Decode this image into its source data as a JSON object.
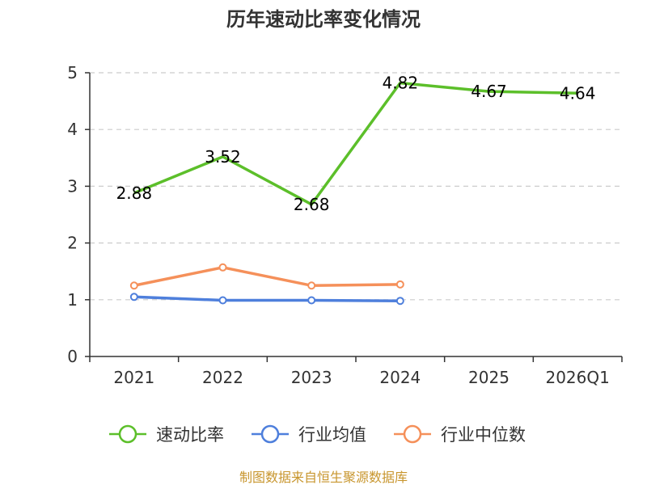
{
  "chart_data": {
    "type": "line",
    "title": "历年速动比率变化情况",
    "categories": [
      "2021",
      "2022",
      "2023",
      "2024",
      "2025",
      "2026Q1"
    ],
    "ylim": [
      0,
      5
    ],
    "yticks": [
      "0",
      "1",
      "2",
      "3",
      "4",
      "5"
    ],
    "grid": true,
    "legend_position": "bottom",
    "series": [
      {
        "name": "速动比率",
        "color": "#5cbf2a",
        "values": [
          2.88,
          3.52,
          2.68,
          4.82,
          4.67,
          4.64
        ],
        "labels": [
          "2.88",
          "3.52",
          "2.68",
          "4.82",
          "4.67",
          "4.64"
        ]
      },
      {
        "name": "行业均值",
        "color": "#4e7fdc",
        "values": [
          1.05,
          0.99,
          0.99,
          0.98,
          null,
          null
        ]
      },
      {
        "name": "行业中位数",
        "color": "#f5905a",
        "values": [
          1.25,
          1.57,
          1.25,
          1.27,
          null,
          null
        ]
      }
    ]
  },
  "source": "制图数据来自恒生聚源数据库"
}
